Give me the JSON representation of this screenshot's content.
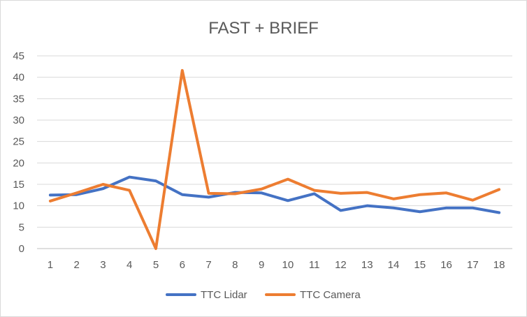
{
  "chart_data": {
    "type": "line",
    "title": "FAST + BRIEF",
    "xlabel": "",
    "ylabel": "",
    "x": [
      1,
      2,
      3,
      4,
      5,
      6,
      7,
      8,
      9,
      10,
      11,
      12,
      13,
      14,
      15,
      16,
      17,
      18
    ],
    "ylim": [
      0,
      45
    ],
    "yticks": [
      0,
      5,
      10,
      15,
      20,
      25,
      30,
      35,
      40,
      45
    ],
    "grid": true,
    "legend_position": "bottom",
    "series": [
      {
        "name": "TTC Lidar",
        "color": "#4472C4",
        "values": [
          12.5,
          12.6,
          14.0,
          16.7,
          15.8,
          12.6,
          12.0,
          13.1,
          13.0,
          11.2,
          12.8,
          8.9,
          10.0,
          9.5,
          8.6,
          9.5,
          9.5,
          8.4
        ]
      },
      {
        "name": "TTC Camera",
        "color": "#ED7D31",
        "values": [
          11.1,
          13.0,
          15.0,
          13.6,
          0.0,
          41.6,
          12.9,
          12.8,
          13.9,
          16.2,
          13.6,
          12.9,
          13.1,
          11.6,
          12.6,
          13.0,
          11.3,
          13.8
        ]
      }
    ]
  }
}
